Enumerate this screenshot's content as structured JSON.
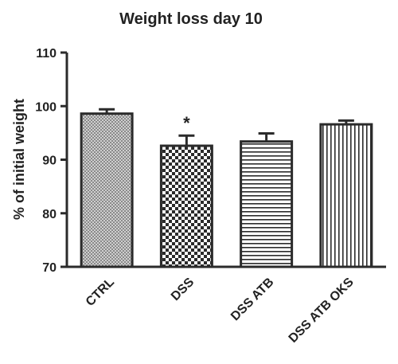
{
  "chart_data": {
    "type": "bar",
    "title": "Weight loss day 10",
    "xlabel": "",
    "ylabel": "% of initial weight",
    "ylim": [
      70,
      110
    ],
    "yticks": [
      70,
      80,
      90,
      100,
      110
    ],
    "grid": false,
    "categories": [
      "CTRL",
      "DSS",
      "DSS ATB",
      "DSS ATB OKS"
    ],
    "values": [
      98.6,
      92.6,
      93.4,
      96.6
    ],
    "errors": [
      0.8,
      1.9,
      1.5,
      0.7
    ],
    "patterns": [
      "fine-crosshatch",
      "checkerboard",
      "horizontal-lines",
      "vertical-lines"
    ],
    "annotations": [
      {
        "category": "DSS",
        "text": "*"
      }
    ],
    "colors": {
      "bar_outline": "#2b2b2b",
      "pattern": "#2b2b2b",
      "text": "#222222"
    }
  }
}
